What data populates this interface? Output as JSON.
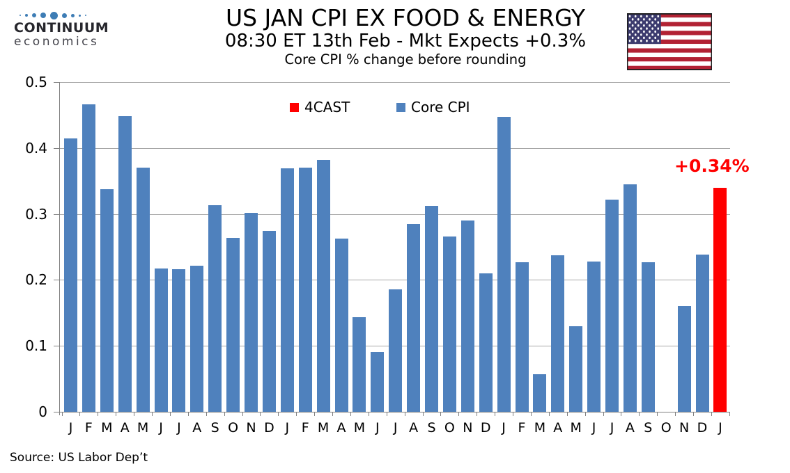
{
  "logo": {
    "brand": "CONTINUUM",
    "sub": "economics",
    "dot_color": "#3e7db5"
  },
  "header": {
    "title": "US JAN CPI EX FOOD & ENERGY",
    "subtitle": "08:30 ET 13th Feb - Mkt Expects +0.3%",
    "subtitle2": "Core CPI % change before rounding"
  },
  "legend": [
    {
      "label": "4CAST",
      "color": "#ff0000"
    },
    {
      "label": "Core CPI",
      "color": "#4f81bd"
    }
  ],
  "annotation": {
    "text": "+0.34%",
    "color": "#ff0000"
  },
  "source": "Source: US Labor Dep’t",
  "flag": {
    "stripe_red": "#b22234",
    "canton_blue": "#3c3b6e",
    "border": "#1f1f1f"
  },
  "chart_data": {
    "type": "bar",
    "title": "US JAN CPI EX FOOD & ENERGY",
    "subtitle": "08:30 ET 13th Feb - Mkt Expects +0.3%",
    "note": "Core CPI % change before rounding",
    "xlabel": "",
    "ylabel": "",
    "ylim": [
      0,
      0.5
    ],
    "yticks": [
      0,
      0.1,
      0.2,
      0.3,
      0.4,
      0.5
    ],
    "ytick_labels": [
      "0",
      "0.1",
      "0.2",
      "0.3",
      "0.4",
      "0.5"
    ],
    "grid": true,
    "legend_position": "top-center",
    "categories": [
      "J",
      "F",
      "M",
      "A",
      "M",
      "J",
      "J",
      "A",
      "S",
      "O",
      "N",
      "D",
      "J",
      "F",
      "M",
      "A",
      "M",
      "J",
      "J",
      "A",
      "S",
      "O",
      "N",
      "D",
      "J",
      "F",
      "M",
      "A",
      "M",
      "J",
      "J",
      "A",
      "S",
      "O",
      "N",
      "D",
      "J"
    ],
    "series": [
      {
        "name": "Core CPI",
        "color": "#4f81bd",
        "values": [
          0.415,
          0.466,
          0.338,
          0.448,
          0.37,
          0.217,
          0.216,
          0.222,
          0.313,
          0.264,
          0.302,
          0.274,
          0.369,
          0.37,
          0.382,
          0.263,
          0.143,
          0.091,
          0.186,
          0.285,
          0.312,
          0.266,
          0.29,
          0.21,
          0.447,
          0.227,
          0.057,
          0.237,
          0.13,
          0.228,
          0.322,
          0.345,
          0.227,
          null,
          0.16,
          0.238,
          null
        ]
      },
      {
        "name": "4CAST",
        "color": "#ff0000",
        "values": [
          null,
          null,
          null,
          null,
          null,
          null,
          null,
          null,
          null,
          null,
          null,
          null,
          null,
          null,
          null,
          null,
          null,
          null,
          null,
          null,
          null,
          null,
          null,
          null,
          null,
          null,
          null,
          null,
          null,
          null,
          null,
          null,
          null,
          null,
          null,
          null,
          0.34
        ]
      }
    ]
  }
}
